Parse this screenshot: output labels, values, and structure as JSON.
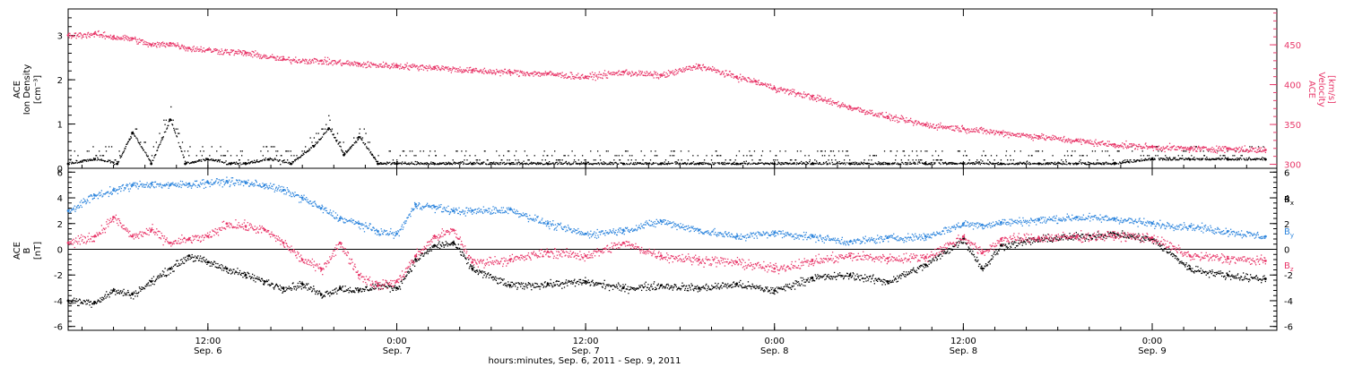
{
  "colors": {
    "axis": "#000000",
    "velocity": "#e8386a",
    "bx": "#000000",
    "by": "#2f86dd",
    "bz": "#e8386a"
  },
  "x_axis": {
    "ticks": [
      {
        "time": "12:00",
        "date": "Sep. 6",
        "day_offset": 0.5
      },
      {
        "time": "0:00",
        "date": "Sep. 7",
        "day_offset": 1.0
      },
      {
        "time": "12:00",
        "date": "Sep. 7",
        "day_offset": 1.5
      },
      {
        "time": "0:00",
        "date": "Sep. 8",
        "day_offset": 2.0
      },
      {
        "time": "12:00",
        "date": "Sep. 8",
        "day_offset": 2.5
      },
      {
        "time": "0:00",
        "date": "Sep. 9",
        "day_offset": 3.0
      }
    ],
    "label": "hours:minutes, Sep.  6, 2011 - Sep.  9, 2011"
  },
  "chart_data": [
    {
      "type": "scatter",
      "panel": "top",
      "x_unit": "days since Sep. 6 2011 00:00",
      "xlim": [
        0.13,
        3.33
      ],
      "left_axis": {
        "label_lines": [
          "ACE",
          "Ion Density",
          "[cm⁻³]"
        ],
        "ylim": [
          0,
          3.6
        ],
        "ticks": [
          0,
          1,
          2,
          3
        ],
        "tick_labels": [
          "0",
          "1",
          "2",
          "3"
        ]
      },
      "right_axis": {
        "label_lines": [
          "ACE",
          "Velocity",
          "[km/s]"
        ],
        "ylim": [
          295,
          495
        ],
        "ticks": [
          300,
          350,
          400,
          450
        ],
        "tick_labels": [
          "300",
          "350",
          "400",
          "450"
        ]
      },
      "series": [
        {
          "name": "Ion Density",
          "axis": "left",
          "x": [
            0.13,
            0.2,
            0.26,
            0.3,
            0.35,
            0.4,
            0.44,
            0.5,
            0.56,
            0.6,
            0.66,
            0.72,
            0.78,
            0.82,
            0.86,
            0.9,
            0.95,
            1.0,
            1.1,
            1.2,
            1.3,
            1.4,
            1.5,
            1.6,
            1.7,
            1.8,
            1.9,
            2.0,
            2.1,
            2.2,
            2.3,
            2.4,
            2.5,
            2.6,
            2.7,
            2.8,
            2.9,
            3.0,
            3.1,
            3.2,
            3.3
          ],
          "y": [
            0.1,
            0.2,
            0.1,
            0.8,
            0.1,
            1.1,
            0.1,
            0.2,
            0.1,
            0.1,
            0.2,
            0.1,
            0.5,
            0.9,
            0.3,
            0.7,
            0.1,
            0.1,
            0.1,
            0.1,
            0.1,
            0.1,
            0.1,
            0.1,
            0.1,
            0.1,
            0.1,
            0.1,
            0.1,
            0.1,
            0.1,
            0.1,
            0.1,
            0.1,
            0.1,
            0.1,
            0.1,
            0.2,
            0.2,
            0.2,
            0.2
          ]
        },
        {
          "name": "Velocity",
          "axis": "right",
          "x": [
            0.13,
            0.2,
            0.25,
            0.3,
            0.35,
            0.4,
            0.45,
            0.5,
            0.6,
            0.7,
            0.8,
            0.9,
            1.0,
            1.1,
            1.2,
            1.3,
            1.4,
            1.5,
            1.6,
            1.7,
            1.8,
            1.9,
            1.95,
            2.0,
            2.1,
            2.2,
            2.3,
            2.4,
            2.5,
            2.6,
            2.7,
            2.8,
            2.9,
            3.0,
            3.1,
            3.2,
            3.3
          ],
          "y": [
            462,
            464,
            460,
            458,
            450,
            452,
            446,
            444,
            440,
            432,
            430,
            426,
            424,
            422,
            418,
            416,
            414,
            410,
            416,
            412,
            424,
            410,
            404,
            396,
            385,
            372,
            360,
            350,
            345,
            340,
            335,
            330,
            325,
            322,
            320,
            320,
            318
          ]
        }
      ]
    },
    {
      "type": "scatter",
      "panel": "bottom",
      "x_unit": "days since Sep. 6 2011 00:00",
      "xlim": [
        0.13,
        3.33
      ],
      "left_axis": {
        "label_lines": [
          "ACE",
          "B",
          "[nT]"
        ],
        "ylim": [
          -6.3,
          6.3
        ],
        "ticks": [
          -6,
          -4,
          -2,
          0,
          2,
          4,
          6
        ],
        "tick_labels": [
          "-6",
          "-4",
          "-2",
          "0",
          "2",
          "4",
          "6"
        ]
      },
      "zero_line": true,
      "legend_placement": "right",
      "series": [
        {
          "name": "Bx",
          "legend_main": "B",
          "legend_sub": "x",
          "x": [
            0.13,
            0.2,
            0.25,
            0.3,
            0.35,
            0.4,
            0.45,
            0.5,
            0.55,
            0.6,
            0.65,
            0.7,
            0.75,
            0.8,
            0.85,
            0.9,
            0.95,
            1.0,
            1.05,
            1.1,
            1.15,
            1.2,
            1.3,
            1.4,
            1.5,
            1.6,
            1.7,
            1.8,
            1.9,
            2.0,
            2.1,
            2.2,
            2.3,
            2.4,
            2.5,
            2.55,
            2.6,
            2.7,
            2.8,
            2.9,
            3.0,
            3.1,
            3.2,
            3.3
          ],
          "y": [
            -4.0,
            -4.1,
            -3.2,
            -3.5,
            -2.5,
            -1.5,
            -0.5,
            -1.0,
            -1.5,
            -2.0,
            -2.5,
            -3.0,
            -2.7,
            -3.5,
            -3.0,
            -3.2,
            -2.8,
            -3.0,
            -0.8,
            0.3,
            0.5,
            -1.5,
            -2.8,
            -2.7,
            -2.5,
            -3.0,
            -2.8,
            -3.0,
            -2.7,
            -3.2,
            -2.2,
            -2.0,
            -2.5,
            -1.2,
            0.8,
            -1.5,
            0.3,
            0.8,
            1.0,
            1.2,
            0.8,
            -1.5,
            -2.0,
            -2.3
          ]
        },
        {
          "name": "By",
          "legend_main": "B",
          "legend_sub": "y",
          "x": [
            0.13,
            0.2,
            0.25,
            0.3,
            0.35,
            0.4,
            0.45,
            0.5,
            0.55,
            0.6,
            0.65,
            0.7,
            0.75,
            0.8,
            0.85,
            0.9,
            0.95,
            1.0,
            1.05,
            1.1,
            1.15,
            1.2,
            1.3,
            1.4,
            1.5,
            1.6,
            1.7,
            1.8,
            1.9,
            2.0,
            2.1,
            2.2,
            2.3,
            2.4,
            2.5,
            2.55,
            2.6,
            2.7,
            2.8,
            2.9,
            3.0,
            3.1,
            3.2,
            3.3
          ],
          "y": [
            3.0,
            4.2,
            4.6,
            5.0,
            5.1,
            5.0,
            5.1,
            5.2,
            5.3,
            5.2,
            5.0,
            4.6,
            4.0,
            3.2,
            2.4,
            2.0,
            1.4,
            1.2,
            3.5,
            3.3,
            3.0,
            3.0,
            3.1,
            2.0,
            1.2,
            1.5,
            2.2,
            1.5,
            1.0,
            1.3,
            1.0,
            0.6,
            0.9,
            1.0,
            2.0,
            1.9,
            2.1,
            2.3,
            2.5,
            2.4,
            2.0,
            1.8,
            1.4,
            1.0
          ]
        },
        {
          "name": "Bz",
          "legend_main": "B",
          "legend_sub": "z",
          "x": [
            0.13,
            0.2,
            0.25,
            0.3,
            0.35,
            0.4,
            0.45,
            0.5,
            0.55,
            0.6,
            0.65,
            0.7,
            0.75,
            0.8,
            0.85,
            0.9,
            0.95,
            1.0,
            1.05,
            1.1,
            1.15,
            1.2,
            1.3,
            1.4,
            1.5,
            1.6,
            1.7,
            1.8,
            1.9,
            2.0,
            2.1,
            2.2,
            2.3,
            2.4,
            2.5,
            2.55,
            2.6,
            2.7,
            2.8,
            2.9,
            3.0,
            3.1,
            3.2,
            3.3
          ],
          "y": [
            0.5,
            1.0,
            2.5,
            1.0,
            1.5,
            0.5,
            0.8,
            1.0,
            2.0,
            1.8,
            1.5,
            0.5,
            -0.8,
            -1.5,
            0.5,
            -2.0,
            -2.8,
            -2.5,
            -0.5,
            1.0,
            1.5,
            -1.0,
            -0.8,
            -0.2,
            -0.5,
            0.5,
            -0.5,
            -0.8,
            -1.0,
            -1.5,
            -0.9,
            -0.5,
            -0.7,
            -0.6,
            1.0,
            -0.3,
            0.8,
            0.9,
            1.0,
            1.1,
            0.9,
            -0.5,
            -0.7,
            -0.9
          ]
        }
      ]
    }
  ]
}
